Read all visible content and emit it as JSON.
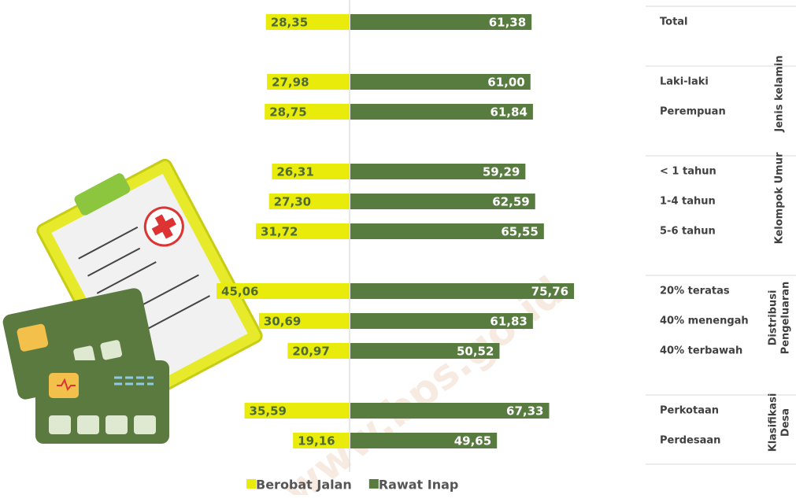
{
  "chart_data": {
    "type": "butterfly",
    "watermark": "www.bps.go.id",
    "groups": [
      {
        "name": null,
        "categories": [
          "Total"
        ]
      },
      {
        "name": [
          "Jenis kelamin"
        ],
        "categories": [
          "Laki-laki",
          "Perempuan"
        ]
      },
      {
        "name": [
          "Kelompok Umur"
        ],
        "categories": [
          "< 1 tahun",
          "1-4 tahun",
          "5-6 tahun"
        ]
      },
      {
        "name": [
          "Distribusi",
          "Pengeluaran"
        ],
        "categories": [
          "20% teratas",
          "40% menengah",
          "40% terbawah"
        ]
      },
      {
        "name": [
          "Klasifikasi",
          "Desa"
        ],
        "categories": [
          "Perkotaan",
          "Perdesaan"
        ]
      }
    ],
    "series": [
      {
        "name": "Berobat Jalan",
        "color": "#e9ec0b",
        "side": "left",
        "values": [
          28.35,
          27.98,
          28.75,
          26.31,
          27.3,
          31.72,
          45.06,
          30.69,
          20.97,
          35.59,
          19.16
        ],
        "value_labels": [
          "28,35",
          "27,98",
          "28,75",
          "26,31",
          "27,30",
          "31,72",
          "45,06",
          "30,69",
          "20,97",
          "35,59",
          "19,16"
        ]
      },
      {
        "name": "Rawat Inap",
        "color": "#587b40",
        "side": "right",
        "values": [
          61.38,
          61.0,
          61.84,
          59.29,
          62.59,
          65.55,
          75.76,
          61.83,
          50.52,
          67.33,
          49.65
        ],
        "value_labels": [
          "61,38",
          "61,00",
          "61,84",
          "59,29",
          "62,59",
          "65,55",
          "75,76",
          "61,83",
          "50,52",
          "67,33",
          "49,65"
        ]
      }
    ]
  }
}
